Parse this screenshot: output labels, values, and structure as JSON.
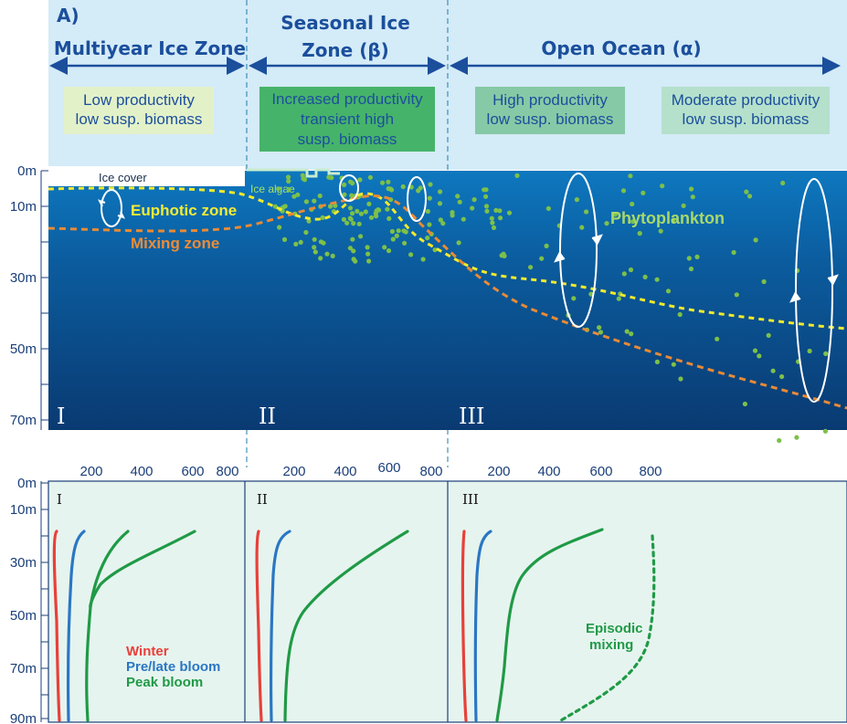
{
  "panel_label": "A)",
  "zones": [
    {
      "title_lines": [
        "Multiyear Ice Zone"
      ]
    },
    {
      "title_lines": [
        "Seasonal Ice",
        "Zone (β)"
      ]
    },
    {
      "title_lines": [
        "Open Ocean (α)"
      ]
    }
  ],
  "info_boxes": [
    {
      "lines": [
        "Low productivity",
        "low susp. biomass"
      ],
      "color": "#e3f1c9"
    },
    {
      "lines": [
        "Increased productivity",
        "transient high",
        "susp. biomass"
      ],
      "color": "#46b36a"
    },
    {
      "lines": [
        "High productivity",
        "low susp. biomass"
      ],
      "color": "#86c9a6"
    },
    {
      "lines": [
        "Moderate productivity",
        "low susp. biomass"
      ],
      "color": "#b5e0cc"
    }
  ],
  "cross_section": {
    "depth_labels": [
      "0m",
      "10m",
      "30m",
      "50m",
      "70m"
    ],
    "region_numerals": [
      "I",
      "II",
      "III"
    ],
    "labels": {
      "ice_cover": "Ice cover",
      "ice_algae": "Ice algae",
      "euphotic": "Euphotic zone",
      "mixing": "Mixing zone",
      "phytoplankton": "Phytoplankton"
    },
    "colors": {
      "ocean_top": "#0e78bf",
      "ocean_bottom": "#0a3a72",
      "euphotic_line": "#f2ea2c",
      "mixing_line": "#e88a35",
      "plankton": "#7cc04a"
    }
  },
  "profiles": {
    "x_ticks": [
      "200",
      "400",
      "600",
      "800"
    ],
    "depth_labels": [
      "0m",
      "10m",
      "30m",
      "50m",
      "70m",
      "90m"
    ],
    "panel_numerals": [
      "I",
      "II",
      "III"
    ],
    "legend": [
      {
        "label": "Winter",
        "color": "#e8403a"
      },
      {
        "label": "Pre/late bloom",
        "color": "#2a77c4"
      },
      {
        "label": "Peak bloom",
        "color": "#1f9a46"
      }
    ],
    "episodic_label": [
      "Episodic",
      "mixing"
    ]
  }
}
